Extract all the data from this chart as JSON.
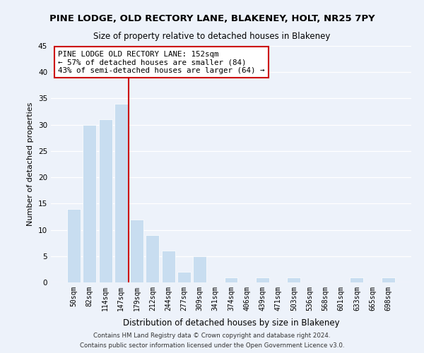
{
  "title": "PINE LODGE, OLD RECTORY LANE, BLAKENEY, HOLT, NR25 7PY",
  "subtitle": "Size of property relative to detached houses in Blakeney",
  "xlabel": "Distribution of detached houses by size in Blakeney",
  "ylabel": "Number of detached properties",
  "bar_labels": [
    "50sqm",
    "82sqm",
    "114sqm",
    "147sqm",
    "179sqm",
    "212sqm",
    "244sqm",
    "277sqm",
    "309sqm",
    "341sqm",
    "374sqm",
    "406sqm",
    "439sqm",
    "471sqm",
    "503sqm",
    "536sqm",
    "568sqm",
    "601sqm",
    "633sqm",
    "665sqm",
    "698sqm"
  ],
  "bar_values": [
    14,
    30,
    31,
    34,
    12,
    9,
    6,
    2,
    5,
    0,
    1,
    0,
    1,
    0,
    1,
    0,
    0,
    0,
    1,
    0,
    1
  ],
  "bar_color": "#c8ddf0",
  "vline_x": 3.5,
  "vline_color": "#cc0000",
  "ylim": [
    0,
    45
  ],
  "yticks": [
    0,
    5,
    10,
    15,
    20,
    25,
    30,
    35,
    40,
    45
  ],
  "annotation_title": "PINE LODGE OLD RECTORY LANE: 152sqm",
  "annotation_line1": "← 57% of detached houses are smaller (84)",
  "annotation_line2": "43% of semi-detached houses are larger (64) →",
  "footer1": "Contains HM Land Registry data © Crown copyright and database right 2024.",
  "footer2": "Contains public sector information licensed under the Open Government Licence v3.0.",
  "background_color": "#edf2fa",
  "plot_bg_color": "#edf2fa"
}
